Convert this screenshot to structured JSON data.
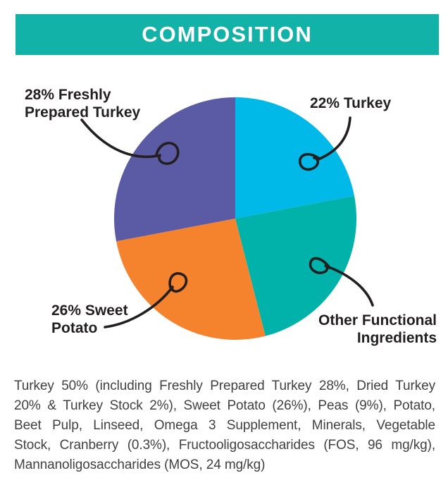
{
  "header": {
    "title": "COMPOSITION",
    "bg_color": "#12b2a8",
    "text_color": "#ffffff"
  },
  "chart_data": {
    "type": "pie",
    "title": "COMPOSITION",
    "direction": "clockwise",
    "start_angle_deg": 0,
    "legend": "none",
    "slices": [
      {
        "label": "22% Turkey",
        "value": 22,
        "color": "#00b9e8"
      },
      {
        "label": "Other Functional Ingredients",
        "value": 24,
        "color": "#00b2a9"
      },
      {
        "label": "26% Sweet Potato",
        "value": 26,
        "color": "#f5822d"
      },
      {
        "label": "28% Freshly Prepared Turkey",
        "value": 28,
        "color": "#5a5aa5"
      }
    ]
  },
  "callouts": {
    "freshly_prepared_turkey": {
      "line1": "28% Freshly",
      "line2": "Prepared Turkey"
    },
    "turkey": {
      "text": "22% Turkey"
    },
    "sweet_potato": {
      "line1": "26% Sweet",
      "line2": "Potato"
    },
    "other_functional": {
      "line1": "Other Functional",
      "line2": "Ingredients"
    }
  },
  "composition_text": {
    "full": "Turkey 50% (including Freshly Prepared Turkey 28%, Dried Turkey 20% & Turkey Stock 2%), Sweet Potato (26%), Peas (9%), Potato, Beet Pulp, Linseed, Omega 3 Supplement, Minerals, Vegetable Stock, Cranberry (0.3%), Fructooligosaccharides (FOS, 96 mg/kg), Mannanoligosaccharides (MOS, 24 mg/kg)",
    "lines": [
      "Turkey 50% (including Freshly Prepared Turkey 28%, Dried Turkey",
      "20% & Turkey Stock 2%), Sweet Potato (26%), Peas (9%), Potato,",
      "Beet Pulp, Linseed, Omega 3 Supplement, Minerals, Vegetable",
      "Stock, Cranberry (0.3%), Fructooligosaccharides (FOS, 96 mg/kg),",
      "Mannanoligosaccharides (MOS, 24 mg/kg)"
    ]
  }
}
